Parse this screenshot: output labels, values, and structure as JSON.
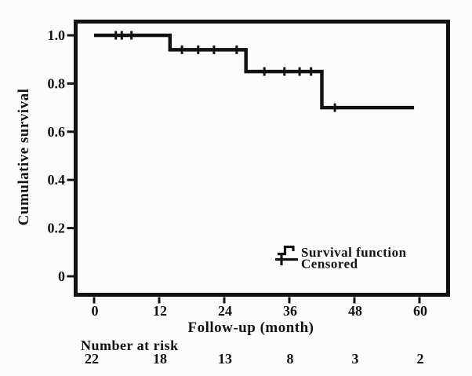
{
  "colors": {
    "ink": "#121212",
    "background": "#fcfcfc"
  },
  "chart_data": {
    "type": "line",
    "variant": "kaplan-meier-step",
    "title": "",
    "xlabel": "Follow-up (month)",
    "ylabel": "Cumulative survival",
    "x_ticks": [
      "0",
      "12",
      "24",
      "36",
      "48",
      "60"
    ],
    "y_ticks": [
      "1.0",
      "0.8",
      "0.6",
      "0.4",
      "0.2",
      "0"
    ],
    "xlim": [
      -3.5,
      65.5
    ],
    "ylim": [
      -0.08,
      1.06
    ],
    "grid": false,
    "legend_position": "inside-lower-right",
    "survival_steps": [
      [
        0,
        1.0
      ],
      [
        14,
        1.0
      ],
      [
        14,
        0.94
      ],
      [
        28,
        0.94
      ],
      [
        28,
        0.85
      ],
      [
        42,
        0.85
      ],
      [
        42,
        0.7
      ],
      [
        59,
        0.7
      ]
    ],
    "censor_marks": [
      [
        4.0,
        1.0
      ],
      [
        5.1,
        1.0
      ],
      [
        6.9,
        1.0
      ],
      [
        16.2,
        0.94
      ],
      [
        19.2,
        0.94
      ],
      [
        22.1,
        0.94
      ],
      [
        26.3,
        0.94
      ],
      [
        31.4,
        0.85
      ],
      [
        35.1,
        0.85
      ],
      [
        37.9,
        0.85
      ],
      [
        40.0,
        0.85
      ],
      [
        44.4,
        0.7
      ]
    ],
    "legend": {
      "survival_label": "Survival function",
      "censored_label": "Censored"
    },
    "risk_table": {
      "label": "Number at risk",
      "values": [
        "22",
        "18",
        "13",
        "8",
        "3",
        "2"
      ]
    }
  }
}
